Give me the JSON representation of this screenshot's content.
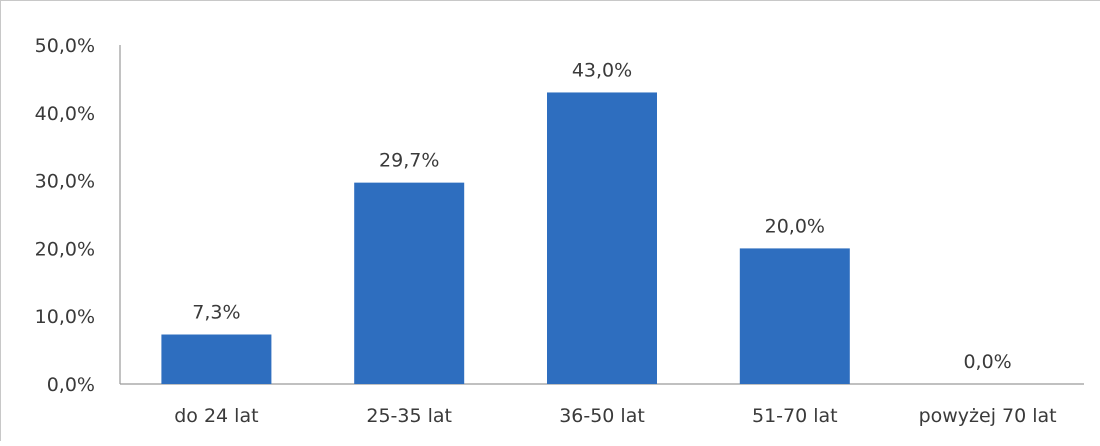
{
  "chart_data": {
    "type": "bar",
    "categories": [
      "do 24 lat",
      "25-35 lat",
      "36-50 lat",
      "51-70 lat",
      "powyżej 70 lat"
    ],
    "values": [
      7.3,
      29.7,
      43.0,
      20.0,
      0.0
    ],
    "data_labels": [
      "7,3%",
      "29,7%",
      "43,0%",
      "20,0%",
      "0,0%"
    ],
    "y_ticks": [
      0,
      10,
      20,
      30,
      40,
      50
    ],
    "y_tick_labels": [
      "0,0%",
      "10,0%",
      "20,0%",
      "30,0%",
      "40,0%",
      "50,0%"
    ],
    "ylim": [
      0,
      50
    ],
    "unit": "%",
    "bar_color": "#2e6ebf",
    "grid": false,
    "legend": "none"
  }
}
